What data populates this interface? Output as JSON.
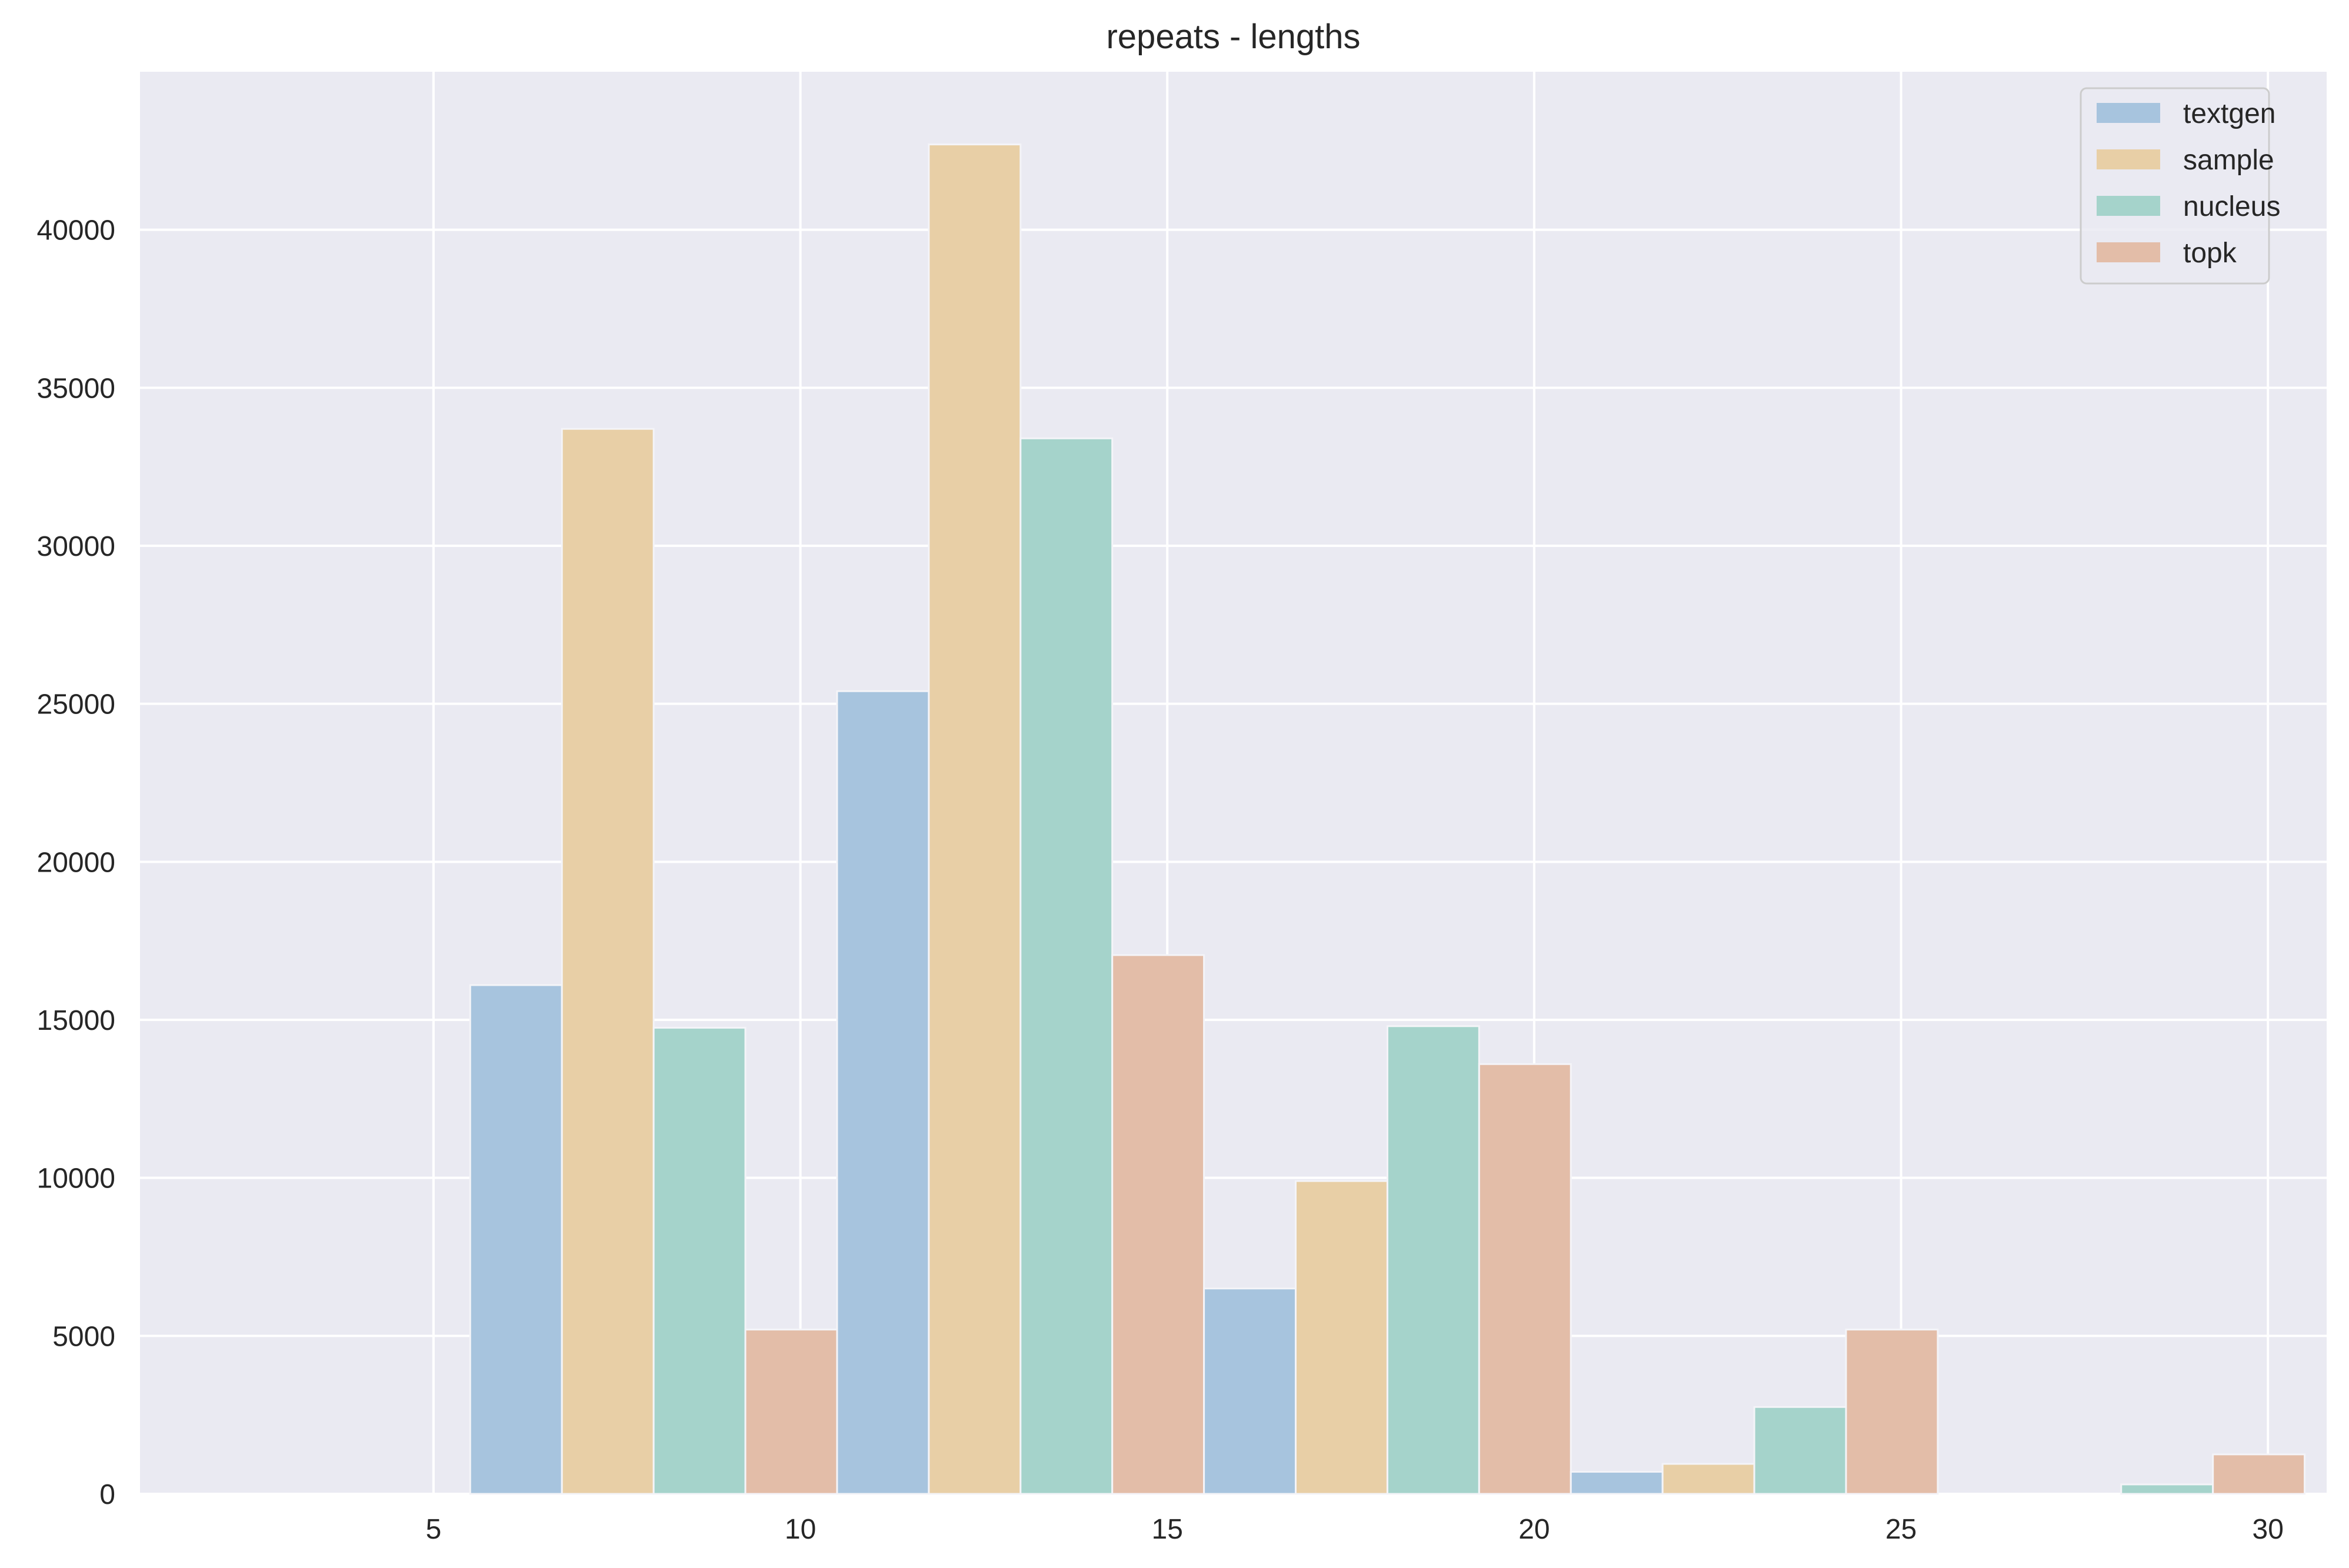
{
  "chart_data": {
    "type": "bar",
    "title": "repeats - lengths",
    "xlabel": "",
    "ylabel": "",
    "xlim": [
      1,
      30.8
    ],
    "ylim": [
      0,
      45000
    ],
    "xticks": [
      5,
      10,
      15,
      20,
      25,
      30
    ],
    "yticks": [
      0,
      5000,
      10000,
      15000,
      20000,
      25000,
      30000,
      35000,
      40000
    ],
    "grid": true,
    "legend_position": "top-right",
    "bin_edges": [
      5.5,
      10.5,
      15.5,
      20.5,
      25.5,
      30.5
    ],
    "series": [
      {
        "name": "textgen",
        "color": "#a7c4de",
        "values": [
          16100,
          25400,
          6500,
          700,
          0
        ]
      },
      {
        "name": "sample",
        "color": "#e8cfa6",
        "values": [
          33700,
          42700,
          9900,
          950,
          0
        ]
      },
      {
        "name": "nucleus",
        "color": "#a5d3cb",
        "values": [
          14750,
          33400,
          14800,
          2750,
          300
        ]
      },
      {
        "name": "topk",
        "color": "#e3bda8",
        "values": [
          5200,
          17050,
          13600,
          5200,
          1250
        ]
      }
    ]
  },
  "colors": {
    "plot_background": "#eaeaf2",
    "grid": "#ffffff",
    "text": "#262626"
  }
}
